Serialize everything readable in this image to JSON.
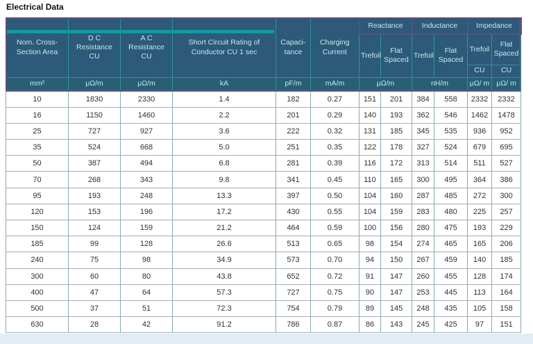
{
  "page": {
    "title": "Electrical Data"
  },
  "head": {
    "col1": "Nom. Cross-Section Area",
    "col2": "D C Resistance CU",
    "col3": "A C Resistance CU",
    "col4": "Short Circuit Rating of Conductor CU 1 sec",
    "col5": "Capaci-tance",
    "col6": "Charging Current",
    "reactance": "Reactance",
    "inductance": "Inductance",
    "impedance": "Impedance",
    "trefoil": "Trefoil",
    "flat_spaced": "Flat Spaced",
    "cu": "CU"
  },
  "units": {
    "col1": "mm²",
    "col2": "μΩ/m",
    "col3": "μΩ/m",
    "col4": "kA",
    "col5": "pF/m",
    "col6": "mA/m",
    "reactance": "μΩ/m",
    "inductance": "nH/m",
    "imp_trefoil": "μΩ/ m",
    "imp_flat": "μΩ/ m"
  },
  "rows": [
    [
      "10",
      "1830",
      "2330",
      "1.4",
      "182",
      "0.27",
      "151",
      "201",
      "384",
      "558",
      "2332",
      "2332"
    ],
    [
      "16",
      "1150",
      "1460",
      "2.2",
      "201",
      "0.29",
      "140",
      "193",
      "362",
      "546",
      "1462",
      "1478"
    ],
    [
      "25",
      "727",
      "927",
      "3.6",
      "222",
      "0.32",
      "131",
      "185",
      "345",
      "535",
      "936",
      "952"
    ],
    [
      "35",
      "524",
      "668",
      "5.0",
      "251",
      "0.35",
      "122",
      "178",
      "327",
      "524",
      "679",
      "695"
    ],
    [
      "50",
      "387",
      "494",
      "6.8",
      "281",
      "0.39",
      "116",
      "172",
      "313",
      "514",
      "511",
      "527"
    ],
    [
      "70",
      "268",
      "343",
      "9.8",
      "341",
      "0.45",
      "110",
      "165",
      "300",
      "495",
      "364",
      "386"
    ],
    [
      "95",
      "193",
      "248",
      "13.3",
      "397",
      "0.50",
      "104",
      "160",
      "287",
      "485",
      "272",
      "300"
    ],
    [
      "120",
      "153",
      "196",
      "17.2",
      "430",
      "0.55",
      "104",
      "159",
      "283",
      "480",
      "225",
      "257"
    ],
    [
      "150",
      "124",
      "159",
      "21.2",
      "464",
      "0.59",
      "100",
      "156",
      "280",
      "475",
      "193",
      "229"
    ],
    [
      "185",
      "99",
      "128",
      "26.6",
      "513",
      "0.65",
      "98",
      "154",
      "274",
      "465",
      "165",
      "206"
    ],
    [
      "240",
      "75",
      "98",
      "34.9",
      "573",
      "0.70",
      "94",
      "150",
      "267",
      "459",
      "140",
      "185"
    ],
    [
      "300",
      "60",
      "80",
      "43.8",
      "652",
      "0.72",
      "91",
      "147",
      "260",
      "455",
      "128",
      "174"
    ],
    [
      "400",
      "47",
      "64",
      "57.3",
      "727",
      "0.75",
      "90",
      "147",
      "253",
      "445",
      "113",
      "164"
    ],
    [
      "500",
      "37",
      "51",
      "72.3",
      "754",
      "0.79",
      "89",
      "145",
      "248",
      "435",
      "105",
      "158"
    ],
    [
      "630",
      "28",
      "42",
      "91.2",
      "786",
      "0.87",
      "86",
      "143",
      "245",
      "425",
      "97",
      "151"
    ]
  ],
  "colors": {
    "header_bg": "#2d5a78",
    "units_bg": "#276074",
    "teal_accent": "#0f9aa0",
    "header_border_teal": "#2d93a0",
    "purple_outline": "#56527f",
    "data_border": "#a5aeb4",
    "bottom_band": "#e2edf3",
    "header_text": "#c9e7ee",
    "data_text": "#303030"
  }
}
